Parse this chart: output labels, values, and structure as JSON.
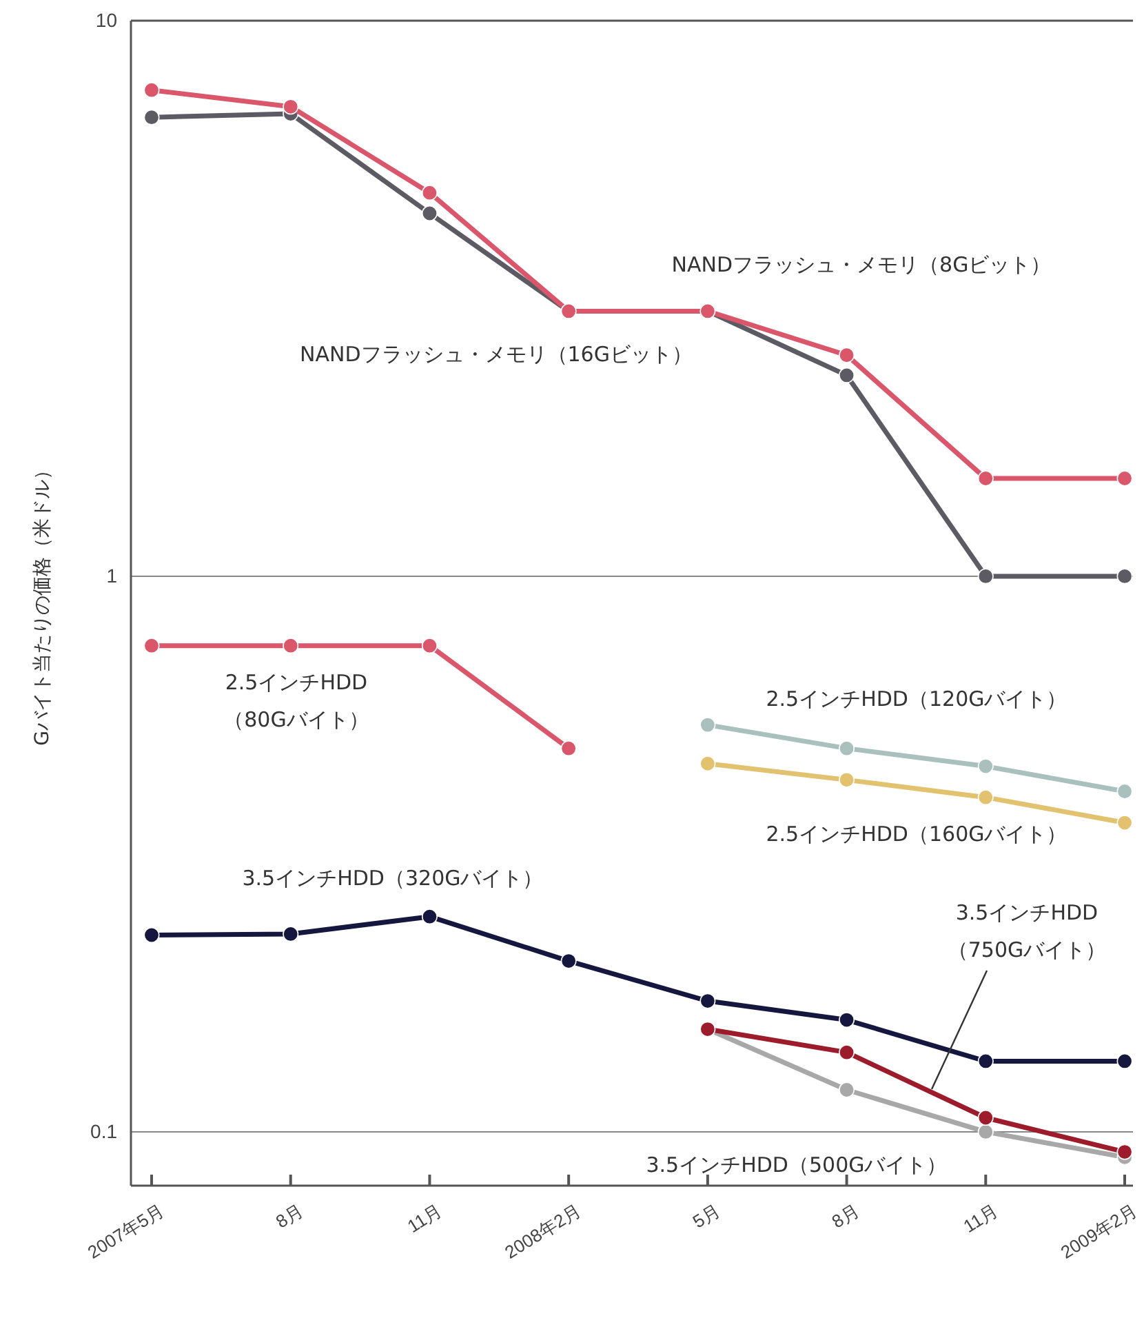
{
  "chart_data": {
    "type": "line",
    "ylabel": "Gバイト当たりの価格（米ドル）",
    "categories": [
      "2007年5月",
      "8月",
      "11月",
      "2008年2月",
      "5月",
      "8月",
      "11月",
      "2009年2月"
    ],
    "log": "y",
    "ylim": [
      0.08,
      10
    ],
    "yticks": [
      0.1,
      1,
      10
    ],
    "grid": "y",
    "marker": "circle",
    "line_style": "solid",
    "series": [
      {
        "name": "NANDフラッシュ・メモリ（16Gビット）",
        "color": "#5c5a62",
        "values": [
          6.7,
          6.8,
          4.5,
          3.0,
          3.0,
          2.3,
          1.0,
          1.0
        ]
      },
      {
        "name": "NANDフラッシュ・メモリ（8Gビット）",
        "color": "#d9566b",
        "values": [
          7.5,
          7.0,
          4.9,
          3.0,
          3.0,
          2.5,
          1.5,
          1.5
        ]
      },
      {
        "name": "2.5インチHDD（80Gバイト）",
        "color": "#d9566b",
        "values": [
          0.75,
          0.75,
          0.75,
          0.49,
          null,
          null,
          null,
          null
        ]
      },
      {
        "name": "2.5インチHDD（120Gバイト）",
        "color": "#a9c0bd",
        "values": [
          null,
          null,
          null,
          null,
          0.54,
          0.49,
          0.455,
          0.41
        ]
      },
      {
        "name": "2.5インチHDD（160Gバイト）",
        "color": "#e2c26f",
        "values": [
          null,
          null,
          null,
          null,
          0.46,
          0.43,
          0.4,
          0.36
        ]
      },
      {
        "name": "3.5インチHDD（320Gバイト）",
        "color": "#15173f",
        "values": [
          0.226,
          0.227,
          0.244,
          0.203,
          0.172,
          0.159,
          0.134,
          0.134
        ]
      },
      {
        "name": "3.5インチHDD（500Gバイト）",
        "color": "#a8a8a8",
        "values": [
          null,
          null,
          null,
          null,
          0.153,
          0.119,
          0.1,
          0.09
        ]
      },
      {
        "name": "3.5インチHDD（750Gバイト）",
        "color": "#9c1c2b",
        "values": [
          null,
          null,
          null,
          null,
          0.153,
          0.139,
          0.106,
          0.092
        ]
      }
    ]
  }
}
